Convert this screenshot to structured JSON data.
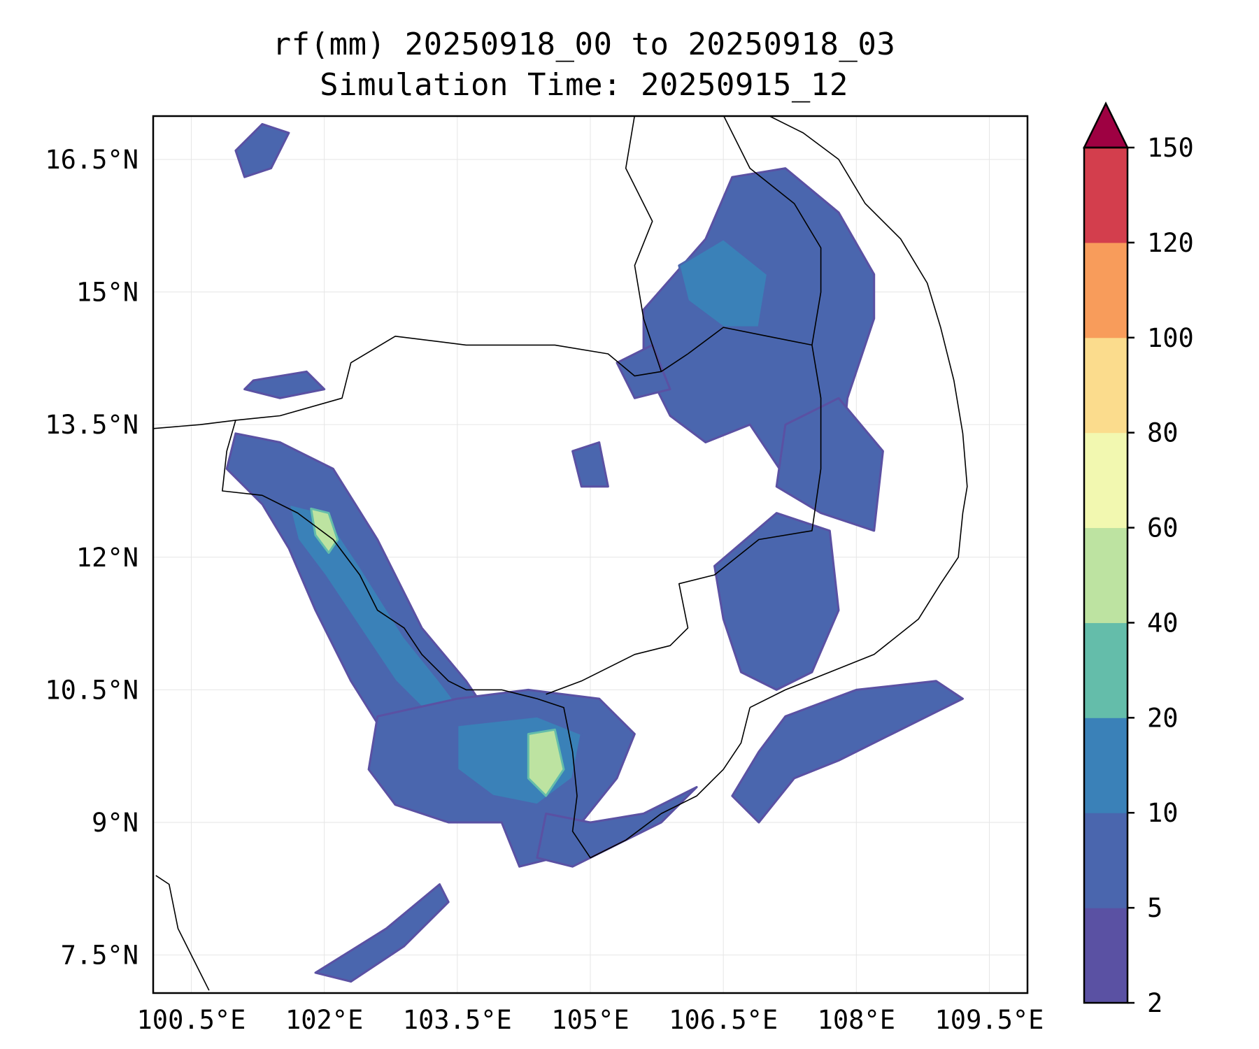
{
  "title": {
    "line1": "rf(mm) 20250918_00 to 20250918_03",
    "line2": "Simulation Time: 20250915_12"
  },
  "map": {
    "lon_range": [
      100.07,
      109.93
    ],
    "lat_range": [
      7.07,
      16.99
    ],
    "x_ticks": [
      {
        "value": 100.5,
        "label": "100.5°E"
      },
      {
        "value": 102,
        "label": "102°E"
      },
      {
        "value": 103.5,
        "label": "103.5°E"
      },
      {
        "value": 105,
        "label": "105°E"
      },
      {
        "value": 106.5,
        "label": "106.5°E"
      },
      {
        "value": 108,
        "label": "108°E"
      },
      {
        "value": 109.5,
        "label": "109.5°E"
      }
    ],
    "y_ticks": [
      {
        "value": 7.5,
        "label": "7.5°N"
      },
      {
        "value": 9,
        "label": "9°N"
      },
      {
        "value": 10.5,
        "label": "10.5°N"
      },
      {
        "value": 12,
        "label": "12°N"
      },
      {
        "value": 13.5,
        "label": "13.5°N"
      },
      {
        "value": 15,
        "label": "15°N"
      },
      {
        "value": 16.5,
        "label": "16.5°N"
      }
    ],
    "gridlines": true,
    "coastline_color": "#000000",
    "rain_bands": [
      {
        "name": "gulf-west-band",
        "level": 1,
        "points": [
          [
            101.0,
            13.4
          ],
          [
            101.5,
            13.3
          ],
          [
            102.1,
            13.0
          ],
          [
            102.6,
            12.2
          ],
          [
            103.1,
            11.2
          ],
          [
            103.6,
            10.6
          ],
          [
            104.0,
            10.0
          ],
          [
            104.3,
            9.3
          ],
          [
            103.8,
            9.1
          ],
          [
            103.2,
            9.2
          ],
          [
            102.8,
            9.8
          ],
          [
            102.3,
            10.6
          ],
          [
            101.9,
            11.4
          ],
          [
            101.6,
            12.1
          ],
          [
            101.3,
            12.6
          ],
          [
            100.9,
            13.0
          ]
        ]
      },
      {
        "name": "gulf-west-core",
        "level": 2,
        "points": [
          [
            101.6,
            12.6
          ],
          [
            102.0,
            12.5
          ],
          [
            102.4,
            11.9
          ],
          [
            102.9,
            11.1
          ],
          [
            103.3,
            10.6
          ],
          [
            103.6,
            10.2
          ],
          [
            103.3,
            10.1
          ],
          [
            102.8,
            10.6
          ],
          [
            102.4,
            11.2
          ],
          [
            102.0,
            11.8
          ],
          [
            101.7,
            12.2
          ]
        ]
      },
      {
        "name": "gulf-west-peak",
        "level": 4,
        "points": [
          [
            101.85,
            12.55
          ],
          [
            102.05,
            12.5
          ],
          [
            102.15,
            12.2
          ],
          [
            102.05,
            12.05
          ],
          [
            101.9,
            12.25
          ]
        ]
      },
      {
        "name": "south-cambodia-band",
        "level": 1,
        "points": [
          [
            102.6,
            10.2
          ],
          [
            103.5,
            10.4
          ],
          [
            104.3,
            10.5
          ],
          [
            105.1,
            10.4
          ],
          [
            105.5,
            10.0
          ],
          [
            105.3,
            9.5
          ],
          [
            104.9,
            9.0
          ],
          [
            104.6,
            8.6
          ],
          [
            104.2,
            8.5
          ],
          [
            104.0,
            9.0
          ],
          [
            103.4,
            9.0
          ],
          [
            102.8,
            9.2
          ],
          [
            102.5,
            9.6
          ]
        ]
      },
      {
        "name": "south-cambodia-core",
        "level": 2,
        "points": [
          [
            103.5,
            10.1
          ],
          [
            104.4,
            10.2
          ],
          [
            104.9,
            10.0
          ],
          [
            104.8,
            9.5
          ],
          [
            104.4,
            9.2
          ],
          [
            103.9,
            9.3
          ],
          [
            103.5,
            9.6
          ]
        ]
      },
      {
        "name": "phu-quoc-peak",
        "level": 4,
        "points": [
          [
            104.3,
            10.0
          ],
          [
            104.6,
            10.05
          ],
          [
            104.7,
            9.6
          ],
          [
            104.5,
            9.3
          ],
          [
            104.3,
            9.5
          ]
        ]
      },
      {
        "name": "ca-mau-band",
        "level": 1,
        "points": [
          [
            104.5,
            9.1
          ],
          [
            105.0,
            9.0
          ],
          [
            105.6,
            9.1
          ],
          [
            106.2,
            9.4
          ],
          [
            105.8,
            9.0
          ],
          [
            105.2,
            8.7
          ],
          [
            104.8,
            8.5
          ],
          [
            104.4,
            8.6
          ]
        ]
      },
      {
        "name": "gulf-south-band",
        "level": 1,
        "points": [
          [
            101.9,
            7.3
          ],
          [
            102.7,
            7.8
          ],
          [
            103.3,
            8.3
          ],
          [
            103.4,
            8.1
          ],
          [
            102.9,
            7.6
          ],
          [
            102.3,
            7.2
          ]
        ]
      },
      {
        "name": "laos-thai-north-cell",
        "level": 1,
        "points": [
          [
            105.6,
            14.8
          ],
          [
            106.3,
            15.6
          ],
          [
            106.6,
            16.3
          ],
          [
            107.2,
            16.4
          ],
          [
            107.8,
            15.9
          ],
          [
            108.2,
            15.2
          ],
          [
            108.2,
            14.7
          ],
          [
            107.9,
            13.8
          ],
          [
            107.8,
            12.8
          ],
          [
            107.2,
            12.9
          ],
          [
            106.8,
            13.5
          ],
          [
            106.3,
            13.3
          ],
          [
            105.9,
            13.6
          ],
          [
            105.6,
            14.2
          ]
        ]
      },
      {
        "name": "laos-north-core",
        "level": 2,
        "points": [
          [
            106.0,
            15.3
          ],
          [
            106.5,
            15.6
          ],
          [
            107.0,
            15.2
          ],
          [
            106.9,
            14.6
          ],
          [
            106.5,
            14.6
          ],
          [
            106.1,
            14.9
          ]
        ]
      },
      {
        "name": "central-highlands-band",
        "level": 1,
        "points": [
          [
            107.2,
            13.5
          ],
          [
            107.8,
            13.8
          ],
          [
            108.3,
            13.2
          ],
          [
            108.2,
            12.3
          ],
          [
            107.6,
            12.5
          ],
          [
            107.1,
            12.8
          ]
        ]
      },
      {
        "name": "east-cambodia-band",
        "level": 1,
        "points": [
          [
            106.4,
            11.9
          ],
          [
            107.1,
            12.5
          ],
          [
            107.7,
            12.3
          ],
          [
            107.8,
            11.4
          ],
          [
            107.5,
            10.7
          ],
          [
            107.1,
            10.5
          ],
          [
            106.7,
            10.7
          ],
          [
            106.5,
            11.3
          ]
        ]
      },
      {
        "name": "south-vietnam-coast-band",
        "level": 1,
        "points": [
          [
            107.2,
            10.2
          ],
          [
            108.0,
            10.5
          ],
          [
            108.9,
            10.6
          ],
          [
            109.2,
            10.4
          ],
          [
            108.4,
            10.0
          ],
          [
            107.8,
            9.7
          ],
          [
            107.3,
            9.5
          ],
          [
            106.9,
            9.0
          ],
          [
            106.6,
            9.3
          ],
          [
            106.9,
            9.8
          ]
        ]
      },
      {
        "name": "thailand-north-cell",
        "level": 1,
        "points": [
          [
            101.0,
            16.6
          ],
          [
            101.3,
            16.9
          ],
          [
            101.6,
            16.8
          ],
          [
            101.4,
            16.4
          ],
          [
            101.1,
            16.3
          ]
        ]
      },
      {
        "name": "thailand-west-cell",
        "level": 1,
        "points": [
          [
            101.2,
            14.0
          ],
          [
            101.8,
            14.1
          ],
          [
            102.0,
            13.9
          ],
          [
            101.5,
            13.8
          ],
          [
            101.1,
            13.9
          ]
        ]
      },
      {
        "name": "cambodia-north-cell",
        "level": 1,
        "points": [
          [
            105.3,
            14.2
          ],
          [
            105.7,
            14.4
          ],
          [
            105.9,
            13.9
          ],
          [
            105.5,
            13.8
          ]
        ]
      },
      {
        "name": "cambodia-mid-cell",
        "level": 1,
        "points": [
          [
            104.8,
            13.2
          ],
          [
            105.1,
            13.3
          ],
          [
            105.2,
            12.8
          ],
          [
            104.9,
            12.8
          ]
        ]
      }
    ]
  },
  "colorbar": {
    "levels": [
      {
        "value": 2,
        "label": "2"
      },
      {
        "value": 5,
        "label": "5"
      },
      {
        "value": 10,
        "label": "10"
      },
      {
        "value": 20,
        "label": "20"
      },
      {
        "value": 40,
        "label": "40"
      },
      {
        "value": 60,
        "label": "60"
      },
      {
        "value": 80,
        "label": "80"
      },
      {
        "value": 100,
        "label": "100"
      },
      {
        "value": 120,
        "label": "120"
      },
      {
        "value": 150,
        "label": "150"
      }
    ],
    "colors": [
      "#5a51a3",
      "#4a66ae",
      "#3a81b8",
      "#64bdaa",
      "#bde3a1",
      "#f2f8b0",
      "#fbdc8d",
      "#f89c5b",
      "#d33e4d"
    ],
    "extend_color": "#9e0142"
  }
}
